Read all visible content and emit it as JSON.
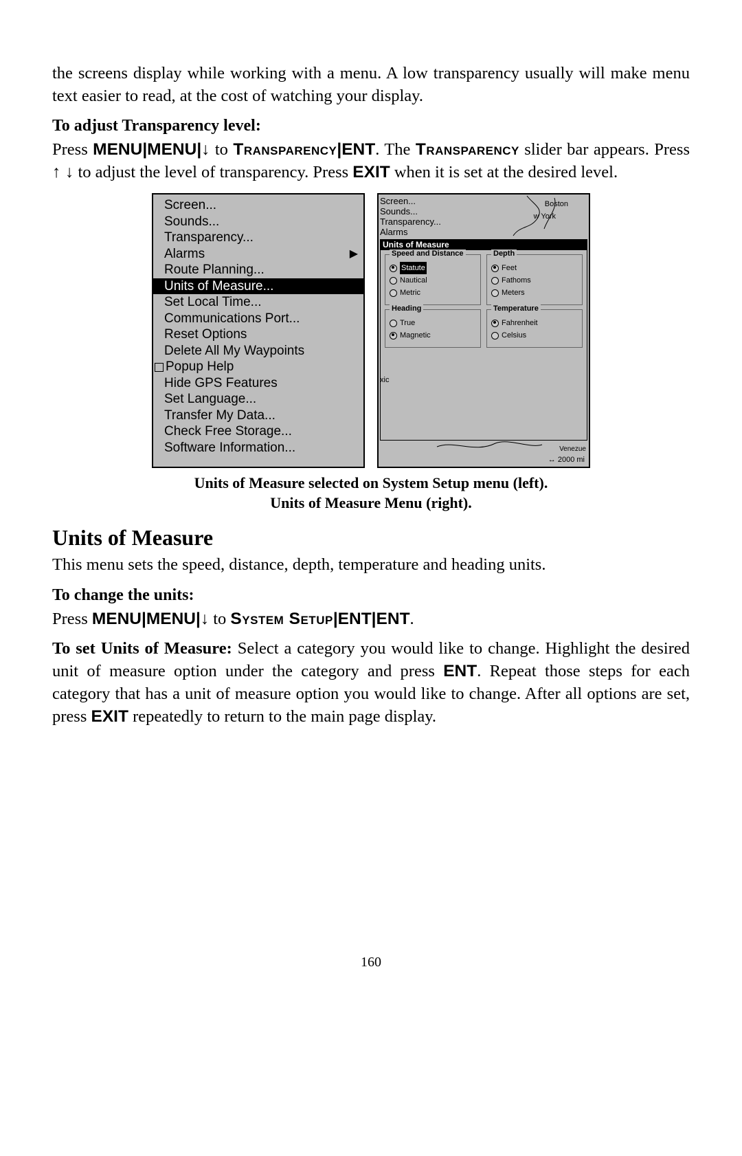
{
  "text": {
    "para1_a": "the screens display while working with a menu. A low transparency usually will make menu text easier to read, at the cost of watching your display.",
    "sub1": "To adjust Transparency level:",
    "instr1_a": "Press ",
    "instr1_b": " to ",
    "instr1_c": ". The ",
    "instr1_d": " slider bar appears. Press ",
    "instr1_e": " to adjust the level of transparency. Press ",
    "instr1_f": " when it is set at the desired level.",
    "caption_l1": "Units of Measure selected on System Setup menu (left).",
    "caption_l2": "Units of Measure Menu (right).",
    "h2": "Units of Measure",
    "para2": "This menu sets the speed, distance, depth, temperature and heading units.",
    "sub2": "To change the units:",
    "instr2_a": "Press ",
    "instr2_b": " to ",
    "instr3_a": "To set Units of Measure: ",
    "instr3_b": "Select a category you would like to change. Highlight the desired unit of measure option under the category and press ",
    "instr3_c": ". Repeat those steps for each category that has a unit of measure option you would like to change. After all options are set, press ",
    "instr3_d": " repeatedly to return to the main page display.",
    "pagenum": "160"
  },
  "keys": {
    "menu": "MENU",
    "ent": "ENT",
    "exit": "EXIT",
    "transparency": "Transparency",
    "systemsetup": "System Setup",
    "down": "↓",
    "updown": "↑ ↓",
    "pipe": "|"
  },
  "leftMenu": {
    "items": [
      {
        "label": "Screen...",
        "selected": false
      },
      {
        "label": "Sounds...",
        "selected": false
      },
      {
        "label": "Transparency...",
        "selected": false
      },
      {
        "label": "Alarms",
        "selected": false,
        "arrow": true
      },
      {
        "label": "Route Planning...",
        "selected": false
      },
      {
        "label": "Units of Measure...",
        "selected": true
      },
      {
        "label": "Set Local Time...",
        "selected": false
      },
      {
        "label": "Communications Port...",
        "selected": false
      },
      {
        "label": "Reset Options",
        "selected": false
      },
      {
        "label": "Delete All My Waypoints",
        "selected": false
      },
      {
        "label": "Popup Help",
        "selected": false,
        "checkbox": true
      },
      {
        "label": "Hide GPS Features",
        "selected": false
      },
      {
        "label": "Set Language...",
        "selected": false
      },
      {
        "label": "Transfer My Data...",
        "selected": false
      },
      {
        "label": "Check Free Storage...",
        "selected": false
      },
      {
        "label": "Software Information...",
        "selected": false
      }
    ]
  },
  "rightPanel": {
    "topMenu": [
      "Screen...",
      "Sounds...",
      "Transparency...",
      "Alarms"
    ],
    "title": "Units of Measure",
    "mapLabels": {
      "boston": "Boston",
      "york": "w York",
      "xic": "xic",
      "venez": "Venezue",
      "scale": "↔ 2000 mi"
    },
    "groups": [
      {
        "legend": "Speed and Distance",
        "options": [
          {
            "label": "Statute",
            "selected": true,
            "highlight": true
          },
          {
            "label": "Nautical",
            "selected": false
          },
          {
            "label": "Metric",
            "selected": false
          }
        ]
      },
      {
        "legend": "Depth",
        "options": [
          {
            "label": "Feet",
            "selected": true
          },
          {
            "label": "Fathoms",
            "selected": false
          },
          {
            "label": "Meters",
            "selected": false
          }
        ]
      },
      {
        "legend": "Heading",
        "options": [
          {
            "label": "True",
            "selected": false
          },
          {
            "label": "Magnetic",
            "selected": true
          }
        ]
      },
      {
        "legend": "Temperature",
        "options": [
          {
            "label": "Fahrenheit",
            "selected": true
          },
          {
            "label": "Celsius",
            "selected": false
          }
        ]
      }
    ]
  }
}
